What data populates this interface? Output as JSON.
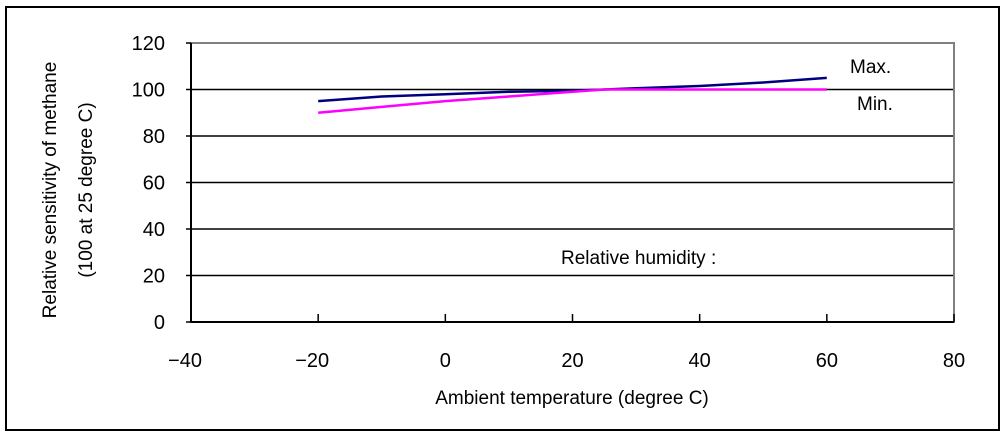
{
  "chart_data": {
    "type": "line",
    "title": "",
    "xlabel": "Ambient temperature (degree C)",
    "ylabel_line1": "Relative sensitivity of methane",
    "ylabel_line2": "(100 at 25 degree C)",
    "xlim": [
      -40,
      80
    ],
    "ylim": [
      0,
      120
    ],
    "xticks": [
      -40,
      -20,
      0,
      20,
      40,
      60,
      80
    ],
    "xtick_labels": [
      "−40",
      "−20",
      "0",
      "20",
      "40",
      "60",
      "80"
    ],
    "yticks": [
      0,
      20,
      40,
      60,
      80,
      100,
      120
    ],
    "ytick_labels": [
      "0",
      "20",
      "40",
      "60",
      "80",
      "100",
      "120"
    ],
    "grid": "horizontal",
    "annotation": "Relative humidity :",
    "series": [
      {
        "name": "Max.",
        "color": "#000080",
        "x": [
          -20,
          -10,
          0,
          10,
          20,
          25,
          30,
          40,
          50,
          60
        ],
        "y": [
          95,
          97,
          98,
          99,
          99.5,
          100,
          100.5,
          101.5,
          103,
          105
        ]
      },
      {
        "name": "Min.",
        "color": "#ff00ff",
        "x": [
          -20,
          -10,
          0,
          10,
          20,
          25,
          30,
          40,
          50,
          60
        ],
        "y": [
          90,
          92.5,
          95,
          97,
          99,
          100,
          100,
          100,
          100,
          100
        ]
      }
    ]
  }
}
